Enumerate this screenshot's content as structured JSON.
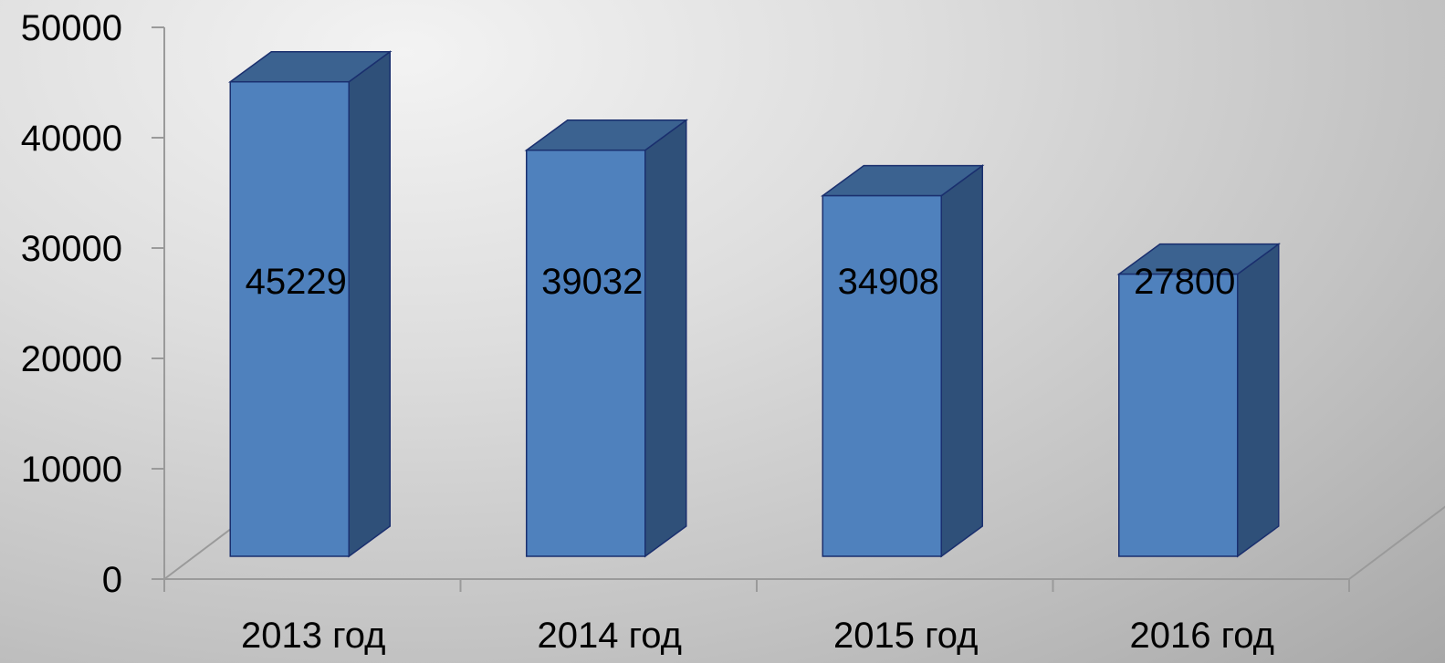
{
  "chart_data": {
    "type": "bar",
    "style": "3d-column",
    "categories": [
      "2013 год",
      "2014 год",
      "2015 год",
      "2016 год"
    ],
    "values": [
      45229,
      39032,
      34908,
      27800
    ],
    "data_labels": [
      "45229",
      "39032",
      "34908",
      "27800"
    ],
    "ylim": [
      0,
      50000
    ],
    "yticks": [
      0,
      10000,
      20000,
      30000,
      40000,
      50000
    ],
    "ytick_labels": [
      "0",
      "10000",
      "20000",
      "30000",
      "40000",
      "50000"
    ],
    "title": "",
    "xlabel": "",
    "ylabel": "",
    "legend": "none",
    "grid": false,
    "colors": {
      "bar_front": "#4f81bd",
      "bar_side": "#2f5079",
      "bar_top": "#3b6290",
      "bar_outline": "#1a2f6e",
      "axis": "#9a9a9a"
    }
  }
}
